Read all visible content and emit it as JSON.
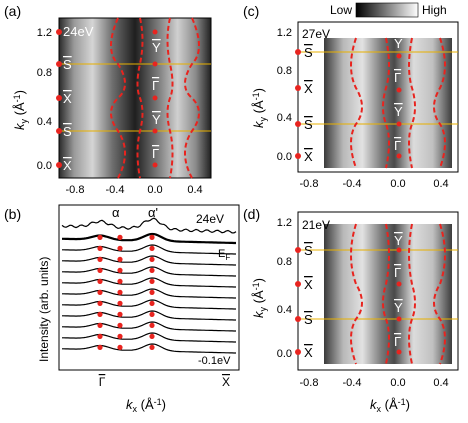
{
  "figure": {
    "panels": [
      {
        "label": "(a)",
        "photon_energy": "24eV"
      },
      {
        "label": "(b)",
        "photon_energy": "24eV"
      },
      {
        "label": "(c)",
        "photon_energy": "27eV"
      },
      {
        "label": "(d)",
        "photon_energy": "21eV"
      }
    ],
    "colorbar": {
      "low_label": "Low",
      "high_label": "High"
    },
    "axes": {
      "ky_label": "k",
      "ky_sub": "y",
      "ky_unit": " (Å",
      "ky_exp": "-1",
      "ky_close": ")",
      "kx_label": "k",
      "kx_sub": "x",
      "kx_unit": " (Å",
      "kx_exp": "-1",
      "kx_close": ")",
      "intensity_label": "Intensity (arb. units)"
    },
    "ticks": {
      "kx_ticks": [
        "-0.8",
        "-0.4",
        "0.0",
        "0.4"
      ],
      "ky_ticks_a": [
        "1.2",
        "0.8",
        "0.4",
        "0.0"
      ],
      "ky_ticks_cd": [
        "1.2",
        "0.8",
        "0.4",
        "0.0"
      ],
      "b_x_ticks": [
        "Γ",
        "X"
      ]
    },
    "symmetry_points": {
      "a_left": [
        "Γ",
        "S",
        "X",
        "S",
        "X"
      ],
      "a_map": [
        "Y",
        "Γ",
        "Y",
        "Γ"
      ],
      "c_left": [
        "S",
        "X",
        "S",
        "X"
      ],
      "c_map": [
        "Y",
        "Γ",
        "Y",
        "Γ"
      ],
      "d_left": [
        "S",
        "X",
        "S",
        "X"
      ],
      "d_map": [
        "Y",
        "Γ",
        "Y",
        "Γ"
      ]
    },
    "edc_labels": {
      "alpha": "α",
      "alpha_prime": "α'",
      "ef": "E",
      "ef_sub": "F",
      "bottom_energy": "-0.1eV"
    },
    "colors": {
      "dispersion_dashes": "#e8241f",
      "high_symmetry_lines": "#e8b000",
      "markers": "#e8241f"
    }
  }
}
